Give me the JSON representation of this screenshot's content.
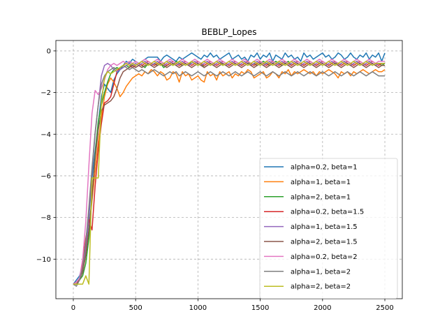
{
  "chart_data": {
    "type": "line",
    "title": "BEBLP_Lopes",
    "xlabel": "",
    "ylabel": "",
    "xlim": [
      -140,
      2640
    ],
    "ylim": [
      -11.9,
      0.5
    ],
    "xticks": [
      0,
      500,
      1000,
      1500,
      2000,
      2500
    ],
    "yticks": [
      -10,
      -8,
      -6,
      -4,
      -2,
      0
    ],
    "grid": true,
    "legend_position": "lower-right",
    "series": [
      {
        "name": "alpha=0.2, beta=1",
        "color": "#1f77b4",
        "x_start": 0,
        "x_step": 25,
        "values": [
          -11.2,
          -11.0,
          -10.8,
          -10.3,
          -9.6,
          -8.0,
          -6.1,
          -4.8,
          -3.5,
          -2.2,
          -1.6,
          -1.8,
          -2.0,
          -1.4,
          -1.1,
          -0.9,
          -0.7,
          -0.5,
          -0.6,
          -0.4,
          -0.5,
          -0.6,
          -0.5,
          -0.4,
          -0.3,
          -0.3,
          -0.3,
          -0.3,
          -0.5,
          -0.3,
          -0.2,
          -0.3,
          -0.4,
          -0.5,
          -0.3,
          -0.4,
          -0.3,
          -0.2,
          -0.1,
          -0.2,
          -0.3,
          -0.4,
          -0.2,
          -0.3,
          -0.1,
          -0.3,
          -0.2,
          -0.4,
          -0.3,
          -0.2,
          -0.1,
          -0.4,
          -0.3,
          -0.2,
          -0.4,
          -0.3,
          -0.5,
          -0.2,
          -0.3,
          -0.1,
          -0.4,
          -0.2,
          -0.3,
          -0.1,
          -0.5,
          -0.2,
          -0.3,
          -0.4,
          -0.1,
          -0.3,
          -0.2,
          -0.4,
          -0.3,
          -0.5,
          -0.1,
          -0.3,
          -0.2,
          -0.4,
          -0.3,
          -0.2,
          -0.1,
          -0.3,
          -0.2,
          -0.4,
          -0.3,
          -0.1,
          -0.2,
          -0.4,
          -0.3,
          -0.1,
          -0.3,
          -0.4,
          -0.2,
          -0.3,
          -0.1,
          -0.4,
          -0.2,
          -0.3,
          -0.1,
          -0.5,
          -0.1
        ]
      },
      {
        "name": "alpha=1, beta=1",
        "color": "#ff7f0e",
        "x_start": 0,
        "x_step": 25,
        "values": [
          -11.2,
          -11.1,
          -11.0,
          -10.6,
          -9.8,
          -8.6,
          -7.2,
          -5.8,
          -4.4,
          -3.2,
          -2.2,
          -1.6,
          -1.3,
          -1.5,
          -1.8,
          -2.2,
          -2.0,
          -1.7,
          -1.5,
          -1.3,
          -1.2,
          -1.1,
          -1.2,
          -1.0,
          -1.1,
          -0.9,
          -1.0,
          -1.2,
          -1.0,
          -1.1,
          -1.4,
          -1.3,
          -1.0,
          -1.1,
          -1.5,
          -1.0,
          -1.2,
          -1.1,
          -1.4,
          -1.3,
          -1.2,
          -1.4,
          -1.5,
          -1.0,
          -1.2,
          -1.1,
          -1.4,
          -1.0,
          -1.2,
          -1.1,
          -1.0,
          -1.3,
          -1.1,
          -1.2,
          -1.0,
          -1.1,
          -0.9,
          -1.0,
          -1.3,
          -1.2,
          -1.1,
          -1.0,
          -1.3,
          -1.2,
          -1.0,
          -1.1,
          -1.3,
          -1.0,
          -1.1,
          -0.9,
          -1.2,
          -1.0,
          -1.1,
          -1.0,
          -0.9,
          -1.0,
          -1.1,
          -1.0,
          -1.2,
          -1.0,
          -1.1,
          -1.0,
          -0.9,
          -1.0,
          -1.1,
          -1.3,
          -1.0,
          -1.1,
          -1.0,
          -1.2,
          -1.0,
          -1.1,
          -1.0,
          -0.9,
          -1.0,
          -1.1,
          -1.0,
          -0.9,
          -1.0,
          -1.0,
          -0.9
        ]
      },
      {
        "name": "alpha=2, beta=1",
        "color": "#2ca02c",
        "x_start": 0,
        "x_step": 25,
        "values": [
          -11.2,
          -11.1,
          -11.0,
          -10.8,
          -10.2,
          -9.0,
          -7.0,
          -5.0,
          -3.4,
          -2.6,
          -2.0,
          -1.5,
          -1.1,
          -0.9,
          -0.8,
          -0.9,
          -0.8,
          -0.7,
          -0.8,
          -0.6,
          -0.7,
          -0.6,
          -0.7,
          -0.8,
          -0.6,
          -0.7,
          -0.6,
          -0.7,
          -0.6,
          -0.8,
          -0.7,
          -0.6,
          -0.7,
          -0.5,
          -0.6,
          -0.7,
          -0.6,
          -0.7,
          -0.5,
          -0.6,
          -0.7,
          -0.6,
          -0.8,
          -0.7,
          -0.6,
          -0.7,
          -0.6,
          -0.5,
          -0.7,
          -0.6,
          -0.7,
          -0.6,
          -0.5,
          -0.6,
          -0.7,
          -0.6,
          -0.5,
          -0.7,
          -0.6,
          -0.7,
          -0.6,
          -0.5,
          -0.6,
          -0.7,
          -0.6,
          -0.5,
          -0.6,
          -0.7,
          -0.6,
          -0.5,
          -0.7,
          -0.6,
          -0.5,
          -0.6,
          -0.7,
          -0.6,
          -0.5,
          -0.6,
          -0.7,
          -0.6,
          -0.5,
          -0.6,
          -0.7,
          -0.6,
          -0.5,
          -0.7,
          -0.6,
          -0.5,
          -0.6,
          -0.7,
          -0.6,
          -0.5,
          -0.6,
          -0.7,
          -0.6,
          -0.5,
          -0.6,
          -0.7,
          -0.6,
          -0.7,
          -0.6
        ]
      },
      {
        "name": "alpha=0.2, beta=1.5",
        "color": "#d62728",
        "x_start": 0,
        "x_step": 25,
        "values": [
          -11.2,
          -11.1,
          -11.0,
          -10.2,
          -9.0,
          -8.1,
          -8.6,
          -6.5,
          -4.8,
          -3.5,
          -2.5,
          -2.4,
          -2.2,
          -1.6,
          -1.0,
          -0.8,
          -0.7,
          -0.6,
          -0.7,
          -0.8,
          -0.7,
          -0.6,
          -0.7,
          -0.6,
          -0.5,
          -0.6,
          -0.7,
          -0.6,
          -0.5,
          -0.6,
          -0.7,
          -0.6,
          -0.5,
          -0.6,
          -0.7,
          -0.6,
          -0.5,
          -0.6,
          -0.7,
          -0.6,
          -0.5,
          -0.6,
          -0.7,
          -0.6,
          -0.5,
          -0.6,
          -0.7,
          -0.6,
          -0.5,
          -0.6,
          -0.7,
          -0.6,
          -0.5,
          -0.6,
          -0.7,
          -0.6,
          -0.5,
          -0.6,
          -0.7,
          -0.6,
          -0.5,
          -0.6,
          -0.7,
          -0.6,
          -0.5,
          -0.6,
          -0.7,
          -0.6,
          -0.5,
          -0.6,
          -0.7,
          -0.6,
          -0.5,
          -0.6,
          -0.7,
          -0.6,
          -0.5,
          -0.6,
          -0.7,
          -0.6,
          -0.5,
          -0.6,
          -0.7,
          -0.6,
          -0.5,
          -0.6,
          -0.7,
          -0.6,
          -0.5,
          -0.6,
          -0.7,
          -0.6,
          -0.5,
          -0.6,
          -0.7,
          -0.6,
          -0.5,
          -0.6,
          -0.7,
          -0.6,
          -0.6
        ]
      },
      {
        "name": "alpha=1, beta=1.5",
        "color": "#9467bd",
        "x_start": 0,
        "x_step": 25,
        "values": [
          -11.2,
          -11.2,
          -11.0,
          -10.6,
          -9.5,
          -7.8,
          -5.8,
          -4.0,
          -2.6,
          -1.2,
          -0.7,
          -0.6,
          -0.7,
          -0.9,
          -1.0,
          -0.9,
          -0.8,
          -0.7,
          -0.6,
          -0.7,
          -0.6,
          -0.7,
          -0.6,
          -0.5,
          -0.6,
          -0.7,
          -0.6,
          -0.5,
          -0.6,
          -0.7,
          -0.6,
          -0.5,
          -0.6,
          -0.7,
          -0.6,
          -0.5,
          -0.6,
          -0.7,
          -0.6,
          -0.5,
          -0.6,
          -0.7,
          -0.6,
          -0.5,
          -0.6,
          -0.7,
          -0.6,
          -0.5,
          -0.6,
          -0.7,
          -0.6,
          -0.5,
          -0.6,
          -0.7,
          -0.6,
          -0.5,
          -0.6,
          -0.7,
          -0.6,
          -0.5,
          -0.6,
          -0.7,
          -0.6,
          -0.5,
          -0.6,
          -0.7,
          -0.6,
          -0.5,
          -0.6,
          -0.7,
          -0.6,
          -0.5,
          -0.6,
          -0.7,
          -0.6,
          -0.5,
          -0.6,
          -0.7,
          -0.6,
          -0.5,
          -0.6,
          -0.7,
          -0.6,
          -0.5,
          -0.6,
          -0.7,
          -0.6,
          -0.5,
          -0.6,
          -0.7,
          -0.6,
          -0.5,
          -0.6,
          -0.7,
          -0.6,
          -0.5,
          -0.6,
          -0.7,
          -0.6,
          -0.6,
          -0.6
        ]
      },
      {
        "name": "alpha=2, beta=1.5",
        "color": "#8c564b",
        "x_start": 0,
        "x_step": 25,
        "values": [
          -11.2,
          -11.2,
          -11.0,
          -10.6,
          -9.8,
          -8.6,
          -7.0,
          -5.2,
          -3.8,
          -2.9,
          -2.6,
          -2.5,
          -2.4,
          -2.2,
          -1.8,
          -1.3,
          -1.0,
          -0.9,
          -0.8,
          -0.7,
          -0.8,
          -0.7,
          -0.8,
          -0.7,
          -0.6,
          -0.7,
          -0.8,
          -0.7,
          -0.6,
          -0.7,
          -0.8,
          -0.7,
          -0.6,
          -0.7,
          -0.8,
          -0.7,
          -0.6,
          -0.7,
          -0.8,
          -0.7,
          -0.6,
          -0.7,
          -0.8,
          -0.7,
          -0.6,
          -0.7,
          -0.8,
          -0.7,
          -0.6,
          -0.7,
          -0.8,
          -0.7,
          -0.6,
          -0.7,
          -0.8,
          -0.7,
          -0.6,
          -0.7,
          -0.8,
          -0.7,
          -0.6,
          -0.7,
          -0.8,
          -0.7,
          -0.6,
          -0.7,
          -0.8,
          -0.7,
          -0.6,
          -0.7,
          -0.8,
          -0.7,
          -0.6,
          -0.7,
          -0.8,
          -0.7,
          -0.6,
          -0.7,
          -0.8,
          -0.7,
          -0.6,
          -0.7,
          -0.8,
          -0.7,
          -0.6,
          -0.7,
          -0.8,
          -0.7,
          -0.6,
          -0.7,
          -0.8,
          -0.7,
          -0.6,
          -0.7,
          -0.8,
          -0.7,
          -0.6,
          -0.7,
          -0.8,
          -0.7,
          -0.7
        ]
      },
      {
        "name": "alpha=0.2, beta=2",
        "color": "#e377c2",
        "x_start": 0,
        "x_step": 25,
        "values": [
          -11.2,
          -11.1,
          -10.9,
          -10.0,
          -8.2,
          -5.5,
          -3.0,
          -1.9,
          -2.1,
          -1.8,
          -1.4,
          -0.9,
          -0.7,
          -0.6,
          -0.7,
          -0.6,
          -0.5,
          -0.6,
          -0.5,
          -0.6,
          -0.5,
          -0.6,
          -0.5,
          -0.4,
          -0.5,
          -0.6,
          -0.5,
          -0.4,
          -0.5,
          -0.6,
          -0.5,
          -0.4,
          -0.5,
          -0.6,
          -0.5,
          -0.4,
          -0.5,
          -0.6,
          -0.5,
          -0.4,
          -0.5,
          -0.6,
          -0.5,
          -0.4,
          -0.5,
          -0.6,
          -0.5,
          -0.4,
          -0.5,
          -0.6,
          -0.5,
          -0.4,
          -0.5,
          -0.6,
          -0.5,
          -0.4,
          -0.5,
          -0.6,
          -0.5,
          -0.4,
          -0.5,
          -0.6,
          -0.5,
          -0.4,
          -0.5,
          -0.6,
          -0.5,
          -0.4,
          -0.5,
          -0.6,
          -0.5,
          -0.4,
          -0.5,
          -0.6,
          -0.5,
          -0.4,
          -0.5,
          -0.6,
          -0.5,
          -0.4,
          -0.5,
          -0.6,
          -0.5,
          -0.4,
          -0.5,
          -0.6,
          -0.5,
          -0.4,
          -0.5,
          -0.6,
          -0.5,
          -0.4,
          -0.5,
          -0.6,
          -0.5,
          -0.4,
          -0.5,
          -0.6,
          -0.5,
          -0.5,
          -0.5
        ]
      },
      {
        "name": "alpha=1, beta=2",
        "color": "#7f7f7f",
        "x_start": 0,
        "x_step": 25,
        "values": [
          -11.2,
          -11.3,
          -11.0,
          -10.4,
          -9.2,
          -7.5,
          -5.6,
          -3.9,
          -2.6,
          -1.6,
          -1.2,
          -1.0,
          -0.9,
          -0.8,
          -0.9,
          -0.8,
          -0.7,
          -0.8,
          -0.9,
          -0.8,
          -0.9,
          -1.0,
          -0.9,
          -1.0,
          -1.1,
          -1.0,
          -0.9,
          -1.0,
          -1.1,
          -1.2,
          -1.1,
          -1.0,
          -1.1,
          -1.0,
          -1.2,
          -1.1,
          -1.0,
          -1.1,
          -1.2,
          -1.1,
          -1.0,
          -1.1,
          -1.2,
          -1.1,
          -1.0,
          -1.1,
          -1.2,
          -1.1,
          -1.0,
          -1.1,
          -1.2,
          -1.1,
          -1.0,
          -1.1,
          -1.2,
          -1.1,
          -1.0,
          -1.1,
          -1.2,
          -1.1,
          -1.0,
          -1.1,
          -1.2,
          -1.1,
          -1.0,
          -1.1,
          -1.2,
          -1.1,
          -1.0,
          -1.1,
          -1.2,
          -1.1,
          -1.0,
          -1.1,
          -1.2,
          -1.1,
          -1.0,
          -1.1,
          -1.2,
          -1.1,
          -1.0,
          -1.1,
          -1.2,
          -1.1,
          -1.0,
          -1.1,
          -1.2,
          -1.1,
          -1.0,
          -1.1,
          -1.2,
          -1.1,
          -1.0,
          -1.1,
          -1.2,
          -1.1,
          -1.0,
          -1.1,
          -1.2,
          -1.2,
          -1.2
        ]
      },
      {
        "name": "alpha=2, beta=2",
        "color": "#bcbd22",
        "x_start": 0,
        "x_step": 25,
        "values": [
          -11.2,
          -11.2,
          -11.2,
          -11.2,
          -10.8,
          -11.2,
          -6.1,
          -6.1,
          -6.1,
          -2.5,
          -1.3,
          -1.0,
          -1.1,
          -1.0,
          -0.9,
          -0.8,
          -0.7,
          -0.6,
          -0.7,
          -0.6,
          -0.7,
          -0.6,
          -0.5,
          -0.6,
          -0.7,
          -0.6,
          -0.5,
          -0.6,
          -0.7,
          -0.6,
          -0.5,
          -0.6,
          -0.7,
          -0.6,
          -0.5,
          -0.6,
          -0.7,
          -0.6,
          -0.5,
          -0.6,
          -0.7,
          -0.6,
          -0.5,
          -0.6,
          -0.7,
          -0.6,
          -0.5,
          -0.6,
          -0.7,
          -0.6,
          -0.5,
          -0.6,
          -0.7,
          -0.6,
          -0.5,
          -0.6,
          -0.7,
          -0.6,
          -0.5,
          -0.6,
          -0.7,
          -0.6,
          -0.5,
          -0.6,
          -0.7,
          -0.6,
          -0.5,
          -0.6,
          -0.7,
          -0.6,
          -0.5,
          -0.6,
          -0.7,
          -0.6,
          -0.5,
          -0.6,
          -0.7,
          -0.6,
          -0.5,
          -0.6,
          -0.7,
          -0.6,
          -0.5,
          -0.6,
          -0.7,
          -0.6,
          -0.5,
          -0.6,
          -0.7,
          -0.6,
          -0.5,
          -0.6,
          -0.7,
          -0.6,
          -0.5,
          -0.6,
          -0.7,
          -0.6,
          -0.6,
          -0.6,
          -0.6
        ]
      }
    ]
  }
}
